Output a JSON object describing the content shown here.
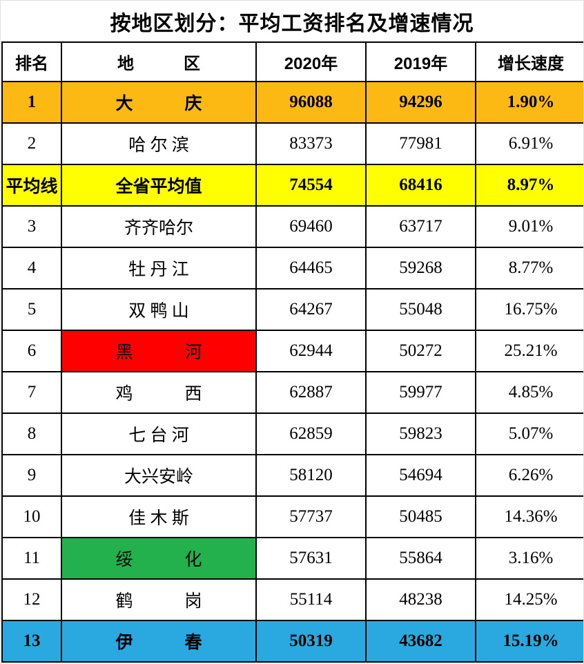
{
  "title": "按地区划分：平均工资排名及增速情况",
  "colors": {
    "row-orange": "#FDB913",
    "row-yellow": "#FFFF00",
    "row-blue": "#29A9E0",
    "cell-red": "#FE0000",
    "cell-green": "#22B14C",
    "growth-red": "#FF0000"
  },
  "table": {
    "headers": {
      "rank": "排名",
      "region": "地　　　区",
      "y2020": "2020年",
      "y2019": "2019年",
      "growth": "增长速度"
    },
    "rows": [
      {
        "rank": "1",
        "region": "大　　　庆",
        "y2020": "96088",
        "y2019": "94296",
        "growth": "1.90%"
      },
      {
        "rank": "2",
        "region": "哈 尔 滨",
        "y2020": "83373",
        "y2019": "77981",
        "growth": "6.91%"
      },
      {
        "rank": "平均线",
        "region": "全省平均值",
        "y2020": "74554",
        "y2019": "68416",
        "growth": "8.97%"
      },
      {
        "rank": "3",
        "region": "齐齐哈尔",
        "y2020": "69460",
        "y2019": "63717",
        "growth": "9.01%"
      },
      {
        "rank": "4",
        "region": "牡 丹 江",
        "y2020": "64465",
        "y2019": "59268",
        "growth": "8.77%"
      },
      {
        "rank": "5",
        "region": "双 鸭 山",
        "y2020": "64267",
        "y2019": "55048",
        "growth": "16.75%"
      },
      {
        "rank": "6",
        "region": "黑　　　河",
        "y2020": "62944",
        "y2019": "50272",
        "growth": "25.21%"
      },
      {
        "rank": "7",
        "region": "鸡　　　西",
        "y2020": "62887",
        "y2019": "59977",
        "growth": "4.85%"
      },
      {
        "rank": "8",
        "region": "七 台 河",
        "y2020": "62859",
        "y2019": "59823",
        "growth": "5.07%"
      },
      {
        "rank": "9",
        "region": "大兴安岭",
        "y2020": "58120",
        "y2019": "54694",
        "growth": "6.26%"
      },
      {
        "rank": "10",
        "region": "佳 木 斯",
        "y2020": "57737",
        "y2019": "50485",
        "growth": "14.36%"
      },
      {
        "rank": "11",
        "region": "绥　　　化",
        "y2020": "57631",
        "y2019": "55864",
        "growth": "3.16%"
      },
      {
        "rank": "12",
        "region": "鹤　　　岗",
        "y2020": "55114",
        "y2019": "48238",
        "growth": "14.25%"
      },
      {
        "rank": "13",
        "region": "伊　　　春",
        "y2020": "50319",
        "y2019": "43682",
        "growth": "15.19%"
      }
    ]
  },
  "chart_data": {
    "type": "table",
    "title": "按地区划分：平均工资排名及增速情况",
    "columns": [
      "排名",
      "地区",
      "2020年",
      "2019年",
      "增长速度"
    ],
    "rows": [
      {
        "rank": "1",
        "region": "大庆",
        "y2020": 96088,
        "y2019": 94296,
        "growth_pct": 1.9,
        "highlight": "orange-row",
        "growth_color": "red"
      },
      {
        "rank": "2",
        "region": "哈尔滨",
        "y2020": 83373,
        "y2019": 77981,
        "growth_pct": 6.91,
        "highlight": null,
        "growth_color": "black"
      },
      {
        "rank": "平均线",
        "region": "全省平均值",
        "y2020": 74554,
        "y2019": 68416,
        "growth_pct": 8.97,
        "highlight": "yellow-row",
        "growth_color": "black"
      },
      {
        "rank": "3",
        "region": "齐齐哈尔",
        "y2020": 69460,
        "y2019": 63717,
        "growth_pct": 9.01,
        "highlight": null,
        "growth_color": "black"
      },
      {
        "rank": "4",
        "region": "牡丹江",
        "y2020": 64465,
        "y2019": 59268,
        "growth_pct": 8.77,
        "highlight": null,
        "growth_color": "black"
      },
      {
        "rank": "5",
        "region": "双鸭山",
        "y2020": 64267,
        "y2019": 55048,
        "growth_pct": 16.75,
        "highlight": null,
        "growth_color": "red"
      },
      {
        "rank": "6",
        "region": "黑河",
        "y2020": 62944,
        "y2019": 50272,
        "growth_pct": 25.21,
        "highlight": "red-region-cell",
        "growth_color": "red"
      },
      {
        "rank": "7",
        "region": "鸡西",
        "y2020": 62887,
        "y2019": 59977,
        "growth_pct": 4.85,
        "highlight": null,
        "growth_color": "red"
      },
      {
        "rank": "8",
        "region": "七台河",
        "y2020": 62859,
        "y2019": 59823,
        "growth_pct": 5.07,
        "highlight": null,
        "growth_color": "black"
      },
      {
        "rank": "9",
        "region": "大兴安岭",
        "y2020": 58120,
        "y2019": 54694,
        "growth_pct": 6.26,
        "highlight": null,
        "growth_color": "black"
      },
      {
        "rank": "10",
        "region": "佳木斯",
        "y2020": 57737,
        "y2019": 50485,
        "growth_pct": 14.36,
        "highlight": null,
        "growth_color": "black"
      },
      {
        "rank": "11",
        "region": "绥化",
        "y2020": 57631,
        "y2019": 55864,
        "growth_pct": 3.16,
        "highlight": "green-region-cell",
        "growth_color": "red"
      },
      {
        "rank": "12",
        "region": "鹤岗",
        "y2020": 55114,
        "y2019": 48238,
        "growth_pct": 14.25,
        "highlight": null,
        "growth_color": "black"
      },
      {
        "rank": "13",
        "region": "伊春",
        "y2020": 50319,
        "y2019": 43682,
        "growth_pct": 15.19,
        "highlight": "blue-row",
        "growth_color": "red"
      }
    ]
  }
}
